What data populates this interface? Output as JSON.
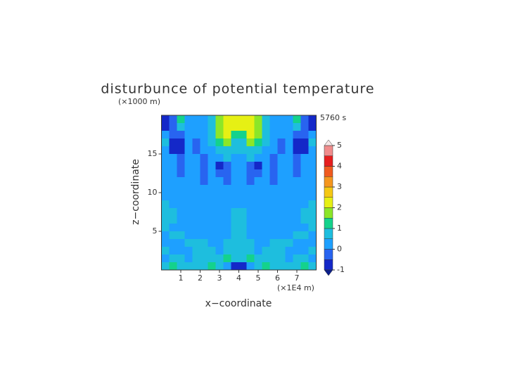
{
  "chart_data": {
    "type": "heatmap",
    "title": "disturbunce of potential temperature",
    "y_unit": "(×1000 m)",
    "x_unit": "(×1E4 m)",
    "time_label": "5760 s",
    "x_label": "x−coordinate",
    "y_label": "z−coordinate",
    "xlim": [
      0,
      8
    ],
    "ylim": [
      0,
      20
    ],
    "xticks": [
      1,
      2,
      3,
      4,
      5,
      6,
      7
    ],
    "yticks": [
      5,
      10,
      15
    ],
    "x": [
      0.2,
      0.6,
      1.0,
      1.4,
      1.8,
      2.2,
      2.6,
      3.0,
      3.4,
      3.8,
      4.2,
      4.6,
      5.0,
      5.4,
      5.8,
      6.2,
      6.6,
      7.0,
      7.4,
      7.8
    ],
    "y": [
      19.5,
      18.5,
      17.5,
      16.5,
      15.5,
      14.5,
      13.5,
      12.5,
      11.5,
      10.5,
      9.5,
      8.5,
      7.5,
      6.5,
      5.5,
      4.5,
      3.5,
      2.5,
      1.5,
      0.5
    ],
    "z": [
      [
        -0.8,
        -0.3,
        1.2,
        0.3,
        0.3,
        0.3,
        0.6,
        1.5,
        2.2,
        2.0,
        2.0,
        2.2,
        1.5,
        0.6,
        0.3,
        0.3,
        0.3,
        1.2,
        -0.3,
        -0.8
      ],
      [
        -0.8,
        -0.2,
        0.8,
        0.2,
        0.2,
        0.4,
        0.8,
        1.8,
        2.3,
        2.2,
        2.2,
        2.3,
        1.8,
        0.8,
        0.4,
        0.2,
        0.2,
        0.8,
        -0.2,
        -0.8
      ],
      [
        0.2,
        -0.3,
        -0.4,
        0.2,
        0.3,
        0.3,
        0.9,
        1.5,
        2.0,
        1.0,
        1.0,
        2.0,
        1.5,
        0.9,
        0.3,
        0.3,
        0.2,
        -0.4,
        -0.3,
        0.2
      ],
      [
        0.7,
        -0.7,
        -0.7,
        0.2,
        -0.3,
        0.3,
        0.6,
        1.0,
        1.5,
        0.8,
        0.8,
        1.5,
        1.0,
        0.6,
        0.3,
        -0.3,
        0.2,
        -0.7,
        -0.7,
        0.7
      ],
      [
        0.3,
        -0.6,
        -0.6,
        0.2,
        -0.4,
        0.2,
        0.3,
        0.6,
        0.9,
        0.5,
        0.5,
        0.9,
        0.6,
        0.3,
        0.2,
        -0.4,
        0.2,
        -0.6,
        -0.6,
        0.3
      ],
      [
        0.2,
        0.1,
        -0.3,
        0.2,
        0.2,
        -0.3,
        0.2,
        0.4,
        0.6,
        0.3,
        0.3,
        0.6,
        0.4,
        0.2,
        -0.3,
        0.2,
        0.2,
        -0.3,
        0.1,
        0.2
      ],
      [
        0.2,
        0.2,
        -0.3,
        0.2,
        0.2,
        -0.3,
        0.2,
        -0.6,
        -0.3,
        0.2,
        0.2,
        -0.3,
        -0.6,
        0.2,
        -0.3,
        0.2,
        0.2,
        -0.3,
        0.2,
        0.2
      ],
      [
        0.2,
        0.2,
        -0.2,
        0.2,
        0.2,
        -0.2,
        0.2,
        -0.3,
        -0.4,
        0.2,
        0.2,
        -0.4,
        -0.3,
        0.2,
        -0.2,
        0.2,
        0.2,
        -0.2,
        0.2,
        0.2
      ],
      [
        0.2,
        0.2,
        0.2,
        0.2,
        0.2,
        -0.2,
        0.2,
        0.2,
        -0.3,
        0.2,
        0.2,
        -0.3,
        0.2,
        0.2,
        -0.2,
        0.2,
        0.2,
        0.2,
        0.2,
        0.2
      ],
      [
        0.2,
        0.2,
        0.2,
        0.2,
        0.2,
        0.2,
        0.2,
        0.2,
        0.2,
        0.4,
        0.4,
        0.2,
        0.2,
        0.2,
        0.2,
        0.2,
        0.2,
        0.2,
        0.2,
        0.2
      ],
      [
        0.2,
        0.2,
        0.2,
        0.2,
        0.2,
        0.2,
        0.2,
        0.2,
        0.2,
        0.4,
        0.4,
        0.2,
        0.2,
        0.2,
        0.2,
        0.2,
        0.2,
        0.2,
        0.2,
        0.2
      ],
      [
        0.6,
        0.2,
        0.2,
        0.2,
        0.2,
        0.2,
        0.2,
        0.2,
        0.2,
        0.4,
        0.4,
        0.2,
        0.2,
        0.2,
        0.2,
        0.2,
        0.2,
        0.2,
        0.2,
        0.6
      ],
      [
        0.8,
        0.6,
        0.2,
        0.2,
        0.2,
        0.2,
        0.2,
        0.2,
        0.2,
        0.6,
        0.6,
        0.2,
        0.2,
        0.2,
        0.2,
        0.2,
        0.2,
        0.2,
        0.6,
        0.8
      ],
      [
        0.8,
        0.7,
        0.3,
        0.2,
        0.2,
        0.2,
        0.2,
        0.2,
        0.2,
        0.6,
        0.6,
        0.2,
        0.2,
        0.2,
        0.2,
        0.2,
        0.2,
        0.3,
        0.7,
        0.8
      ],
      [
        0.6,
        0.3,
        0.2,
        0.2,
        0.2,
        0.2,
        0.2,
        0.2,
        0.2,
        0.6,
        0.6,
        0.2,
        0.2,
        0.2,
        0.2,
        0.2,
        0.2,
        0.2,
        0.3,
        0.6
      ],
      [
        0.2,
        0.6,
        0.6,
        0.2,
        0.2,
        0.2,
        0.2,
        0.2,
        0.2,
        0.6,
        0.6,
        0.2,
        0.2,
        0.2,
        0.2,
        0.2,
        0.2,
        0.6,
        0.6,
        0.2
      ],
      [
        0.2,
        0.2,
        0.2,
        0.6,
        0.6,
        0.6,
        0.2,
        0.2,
        0.6,
        0.6,
        0.6,
        0.6,
        0.2,
        0.2,
        0.6,
        0.6,
        0.6,
        0.2,
        0.2,
        0.2
      ],
      [
        0.6,
        0.2,
        0.2,
        0.2,
        0.6,
        0.8,
        0.6,
        0.3,
        0.6,
        0.8,
        0.8,
        0.6,
        0.3,
        0.6,
        0.8,
        0.6,
        0.2,
        0.2,
        0.2,
        0.6
      ],
      [
        0.3,
        0.6,
        0.6,
        0.2,
        0.6,
        0.8,
        0.6,
        0.6,
        1.0,
        0.6,
        0.6,
        1.0,
        0.6,
        0.6,
        0.8,
        0.6,
        0.2,
        0.6,
        0.6,
        0.3
      ],
      [
        0.6,
        1.0,
        0.6,
        0.6,
        0.6,
        0.8,
        1.1,
        0.6,
        0.2,
        -0.6,
        -0.6,
        0.2,
        0.6,
        1.1,
        0.8,
        0.6,
        0.6,
        0.6,
        1.0,
        0.6
      ]
    ],
    "levels": [
      -1,
      -0.5,
      0,
      0.5,
      1,
      1.5,
      2,
      2.5,
      3,
      3.5,
      4,
      4.5,
      5
    ],
    "colors": [
      "#0a1e8c",
      "#1428c8",
      "#2864f0",
      "#1ea0ff",
      "#1ebede",
      "#14d28c",
      "#8ce628",
      "#e6f014",
      "#f5c814",
      "#f5961e",
      "#f05a1e",
      "#e61e1e",
      "#f08c8c",
      "#f5b4b4",
      "#f5e6e6"
    ],
    "colorbar_ticks": [
      5,
      4,
      3,
      2,
      1,
      0,
      -1
    ]
  }
}
